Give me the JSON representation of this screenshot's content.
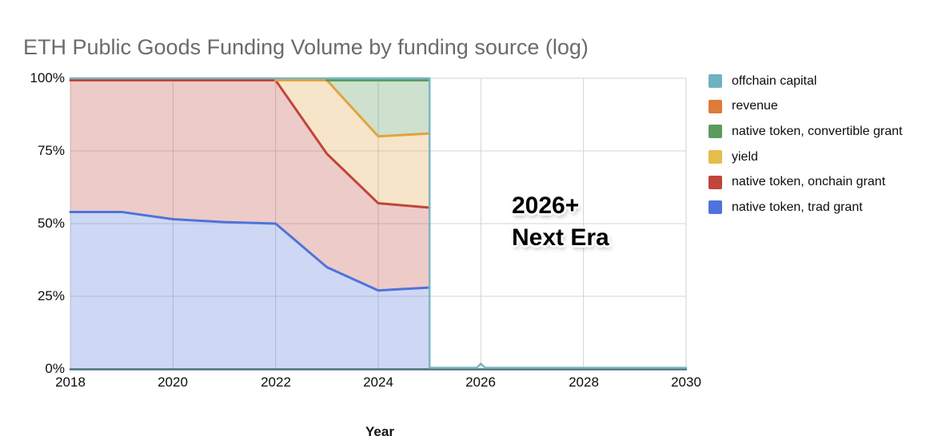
{
  "title": "ETH Public Goods Funding Volume by funding source (log)",
  "legend": {
    "items": [
      {
        "label": "offchain capital",
        "color": "#6fb3c1"
      },
      {
        "label": "revenue",
        "color": "#df7b38"
      },
      {
        "label": "native token, convertible grant",
        "color": "#5b9c5e"
      },
      {
        "label": "yield",
        "color": "#e4bd4d"
      },
      {
        "label": "native token, onchain grant",
        "color": "#c0453a"
      },
      {
        "label": "native token, trad grant",
        "color": "#4e73dc"
      }
    ]
  },
  "axes": {
    "y_labels": [
      "100%",
      "75%",
      "50%",
      "25%",
      "0%"
    ],
    "x_labels": [
      "2018",
      "2020",
      "2022",
      "2024",
      "2026",
      "2028",
      "2030"
    ],
    "x_title": "Year"
  },
  "annotation": {
    "line1": "2026+",
    "line2": "Next Era"
  },
  "chart_data": {
    "type": "area",
    "stacking": "percent",
    "title": "ETH Public Goods Funding Volume by funding source (log)",
    "xlabel": "Year",
    "ylabel": "",
    "xlim": [
      2018,
      2030
    ],
    "ylim": [
      0,
      100
    ],
    "grid": true,
    "legend_position": "right",
    "x": [
      2018,
      2019,
      2020,
      2021,
      2022,
      2023,
      2024,
      2025
    ],
    "series": [
      {
        "name": "native token, trad grant",
        "line_color": "#4e73dc",
        "fill_alpha": 0.28,
        "start_year": 2018,
        "values": [
          54,
          54,
          51.5,
          50.5,
          50,
          35,
          27,
          28
        ]
      },
      {
        "name": "native token, onchain grant",
        "line_color": "#c0453a",
        "fill_alpha": 0.28,
        "start_year": 2018,
        "values": [
          45.3,
          45.3,
          47.8,
          48.8,
          49.3,
          39,
          30,
          27.5
        ]
      },
      {
        "name": "yield",
        "line_color": "#e2a33e",
        "fill_alpha": 0.28,
        "start_year": 2022,
        "values": [
          0,
          0,
          0,
          0,
          0,
          25.3,
          23,
          25.5
        ]
      },
      {
        "name": "native token, convertible grant",
        "line_color": "#5b9c5e",
        "fill_alpha": 0.3,
        "start_year": 2023,
        "values": [
          0,
          0,
          0,
          0,
          0,
          0,
          19.3,
          18.3
        ]
      },
      {
        "name": "revenue",
        "line_color": "#df7b38",
        "fill_alpha": 0.28,
        "start_year": null,
        "values": [
          0,
          0,
          0,
          0,
          0,
          0,
          0,
          0
        ]
      },
      {
        "name": "offchain capital",
        "line_color": "#7ab7c4",
        "fill_alpha": 0.45,
        "start_year": 2018,
        "values": [
          0.7,
          0.7,
          0.7,
          0.7,
          0.7,
          0.7,
          0.7,
          0.7
        ]
      }
    ],
    "offchain_tail": {
      "x": [
        2025,
        2025.92,
        2026,
        2026.08,
        2030
      ],
      "values": [
        0.4,
        0.4,
        1.8,
        0.4,
        0.4
      ]
    },
    "annotation": {
      "text": "2026+ Next Era",
      "x_year": 2026.6,
      "y_pct": 55
    }
  }
}
